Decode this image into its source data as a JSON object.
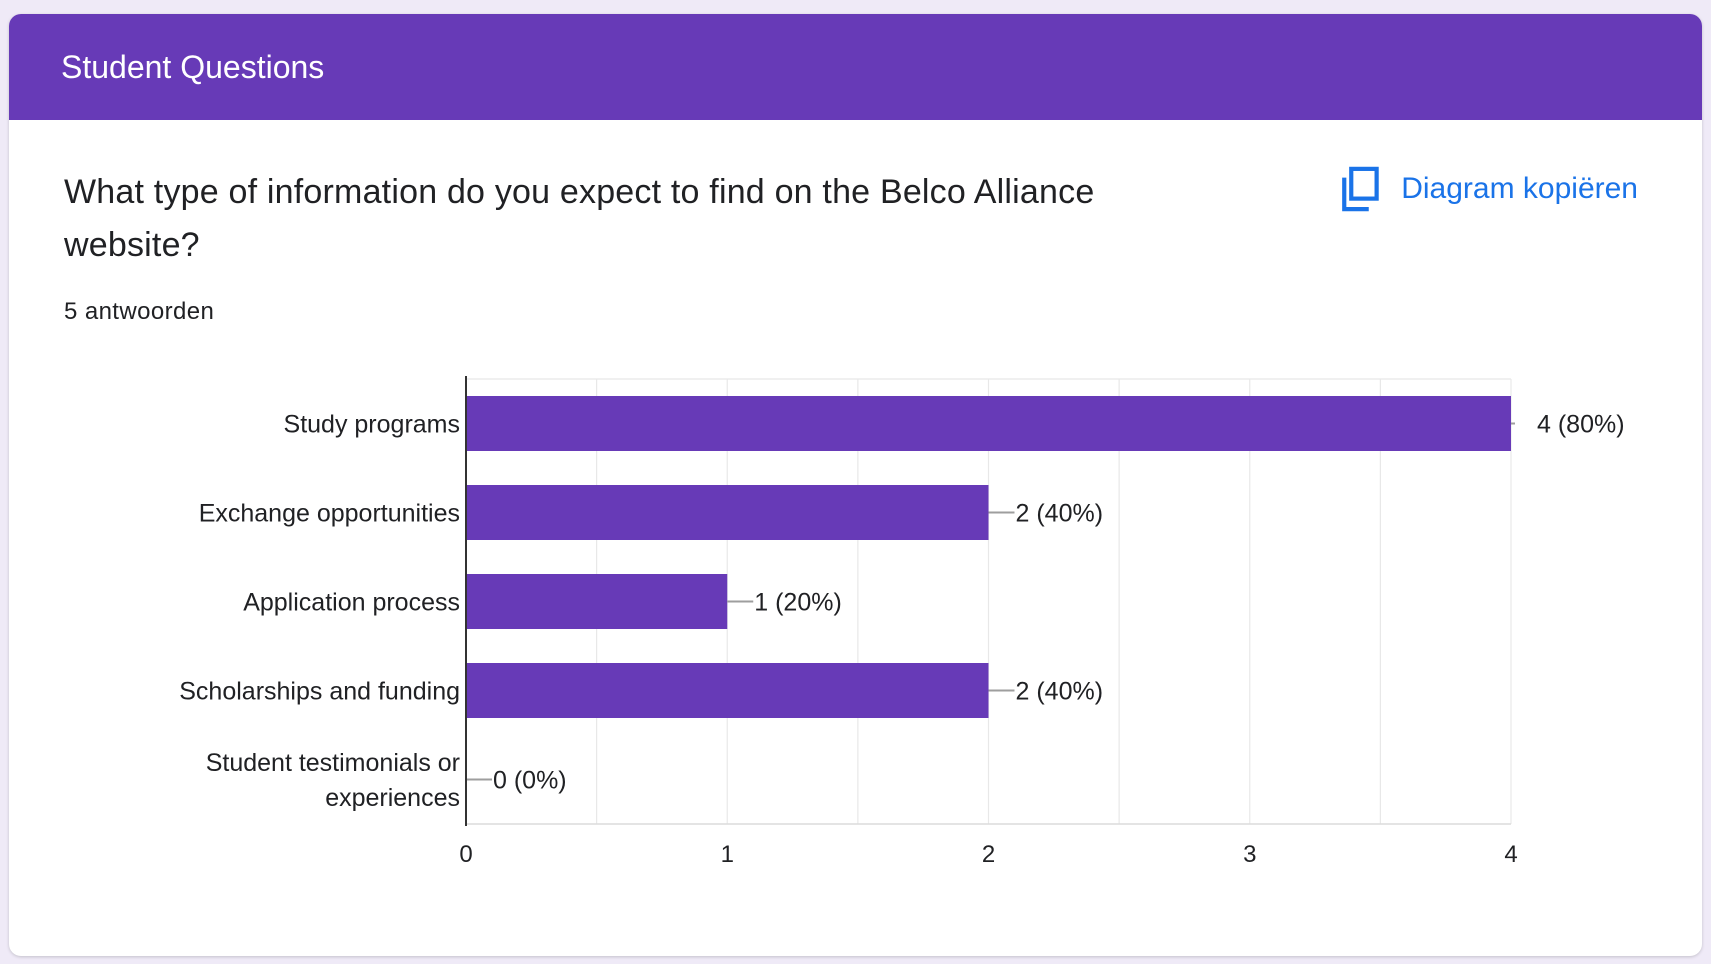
{
  "header": {
    "title": "Student Questions"
  },
  "question": {
    "text": "What type of information do you expect to find on the Belco Alliance website?",
    "responses": "5 antwoorden"
  },
  "actions": {
    "copy_chart_label": "Diagram kopiëren",
    "copy_icon": "copy-icon",
    "accent_color": "#1a73e8"
  },
  "chart_data": {
    "type": "bar",
    "orientation": "horizontal",
    "bar_color": "#673ab7",
    "categories": [
      [
        "Study programs"
      ],
      [
        "Exchange opportunities"
      ],
      [
        "Application process"
      ],
      [
        "Scholarships and funding"
      ],
      [
        "Student testimonials or",
        "experiences"
      ]
    ],
    "values": [
      4,
      2,
      1,
      2,
      0
    ],
    "data_labels": [
      "4 (80%)",
      "2 (40%)",
      "1 (20%)",
      "2 (40%)",
      "0 (0%)"
    ],
    "xlim": [
      0,
      4
    ],
    "xticks": [
      0,
      1,
      2,
      3,
      4
    ],
    "grid": true
  }
}
